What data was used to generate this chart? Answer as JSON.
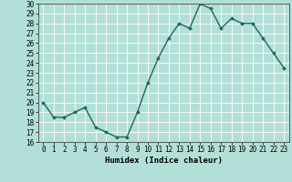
{
  "x": [
    0,
    1,
    2,
    3,
    4,
    5,
    6,
    7,
    8,
    9,
    10,
    11,
    12,
    13,
    14,
    15,
    16,
    17,
    18,
    19,
    20,
    21,
    22,
    23
  ],
  "y": [
    20.0,
    18.5,
    18.5,
    19.0,
    19.5,
    17.5,
    17.0,
    16.5,
    16.5,
    19.0,
    22.0,
    24.5,
    26.5,
    28.0,
    27.5,
    30.0,
    29.5,
    27.5,
    28.5,
    28.0,
    28.0,
    26.5,
    25.0,
    23.5
  ],
  "line_color": "#1a6b5a",
  "marker_color": "#1a6b5a",
  "bg_color": "#b2e0d8",
  "grid_color": "#ffffff",
  "xlabel": "Humidex (Indice chaleur)",
  "ylim": [
    16,
    30
  ],
  "yticks": [
    16,
    17,
    18,
    19,
    20,
    21,
    22,
    23,
    24,
    25,
    26,
    27,
    28,
    29,
    30
  ],
  "xticks": [
    0,
    1,
    2,
    3,
    4,
    5,
    6,
    7,
    8,
    9,
    10,
    11,
    12,
    13,
    14,
    15,
    16,
    17,
    18,
    19,
    20,
    21,
    22,
    23
  ],
  "label_fontsize": 6.5,
  "tick_fontsize": 5.5,
  "line_width": 1.0,
  "marker_size": 2.0
}
